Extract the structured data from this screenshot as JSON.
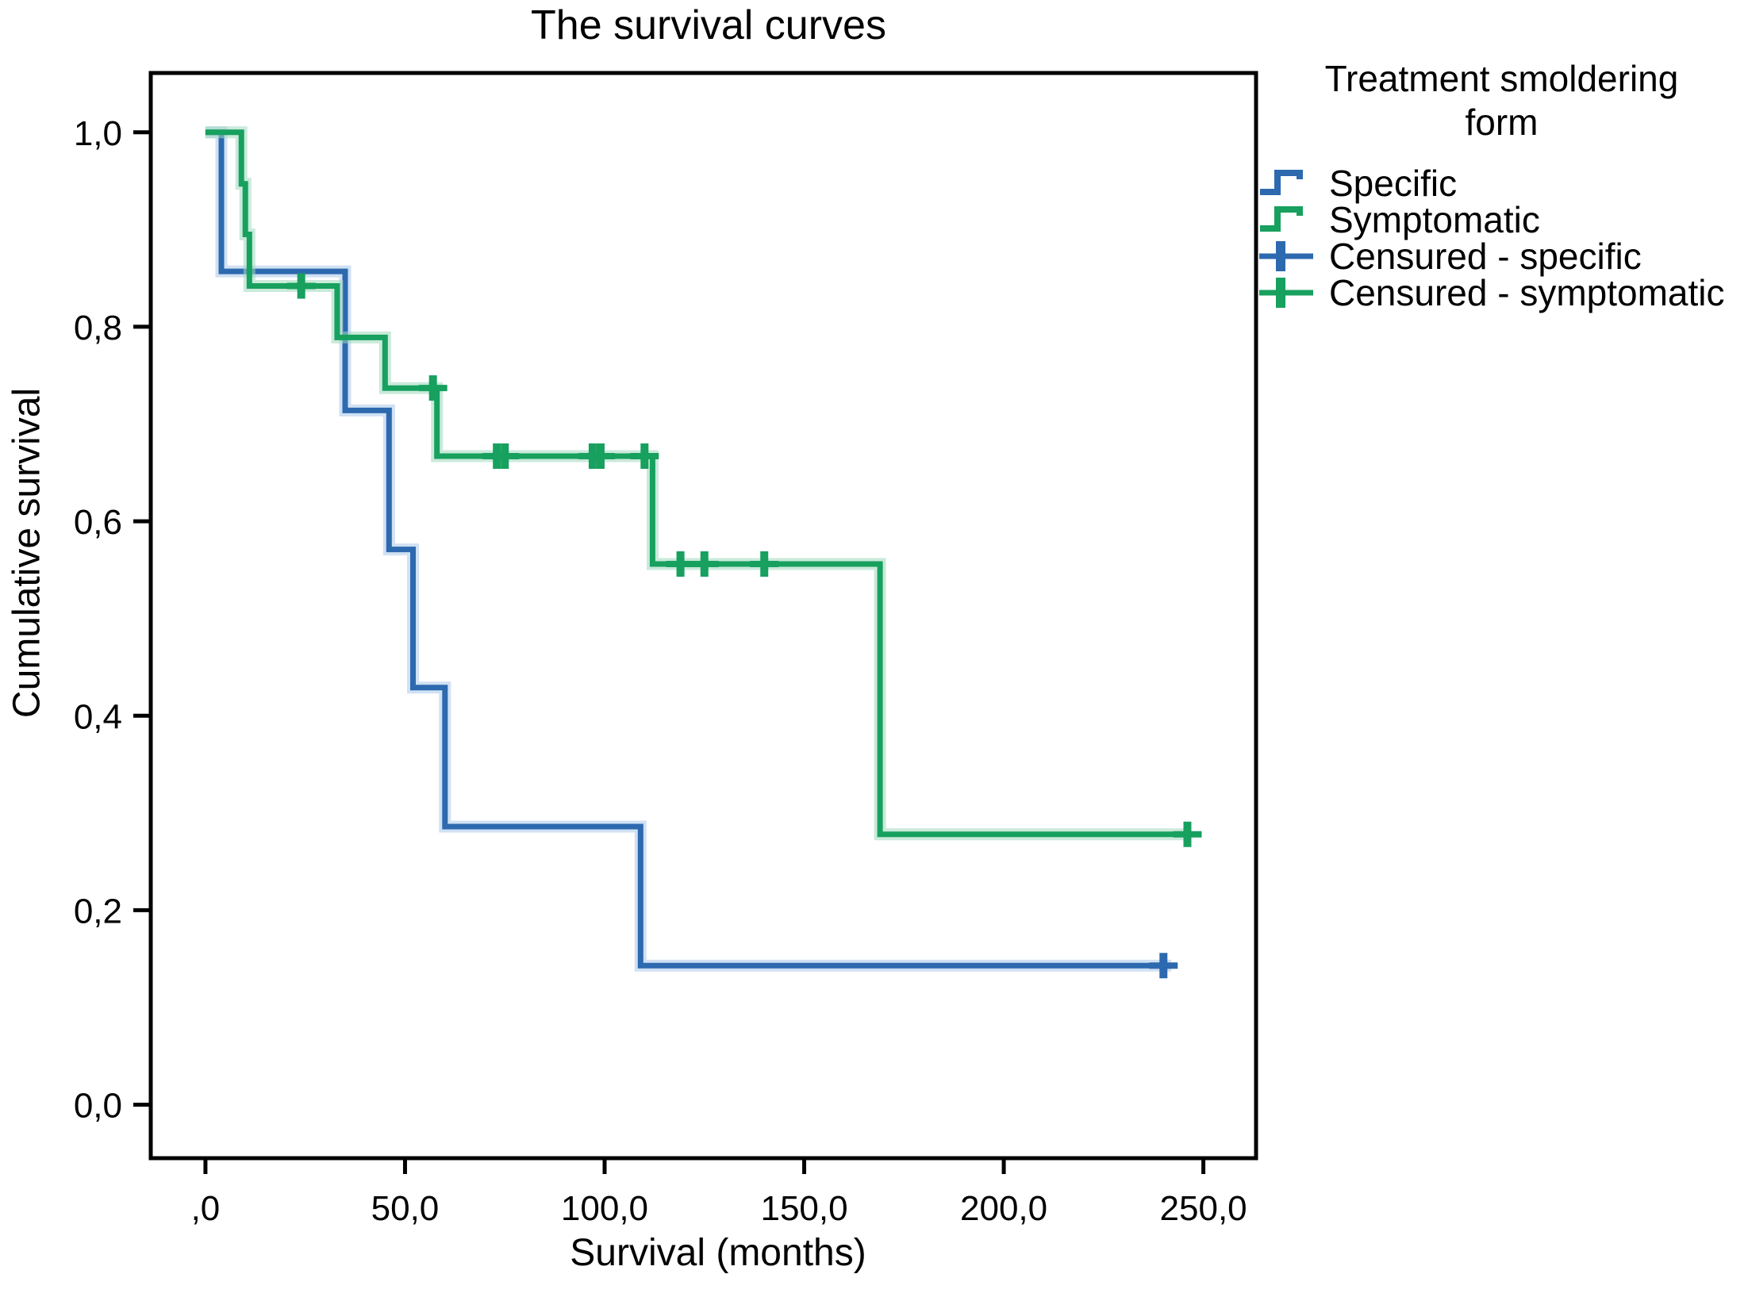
{
  "title": "The survival curves",
  "axes": {
    "xlabel": "Survival (months)",
    "ylabel": "Cumulative survival"
  },
  "legend": {
    "title": "Treatment smoldering form",
    "items": [
      {
        "label": "Specific",
        "glyph": "step",
        "color": "#2D69AF"
      },
      {
        "label": "Symptomatic",
        "glyph": "step",
        "color": "#17A05E"
      },
      {
        "label": "Censured - specific",
        "glyph": "censor",
        "color": "#2D69AF"
      },
      {
        "label": "Censured - symptomatic",
        "glyph": "censor",
        "color": "#17A05E"
      }
    ]
  },
  "chart_data": {
    "type": "line",
    "subtype": "kaplan-meier-step",
    "title": "The survival curves",
    "xlabel": "Survival (months)",
    "ylabel": "Cumulative survival",
    "grid": false,
    "legend_position": "outside-top-right",
    "xlim": [
      -13.7,
      263.2
    ],
    "ylim": [
      -0.055,
      1.061
    ],
    "x_ticks": [
      {
        "value": 0,
        "label": ",0"
      },
      {
        "value": 50,
        "label": "50,0"
      },
      {
        "value": 100,
        "label": "100,0"
      },
      {
        "value": 150,
        "label": "150,0"
      },
      {
        "value": 200,
        "label": "200,0"
      },
      {
        "value": 250,
        "label": "250,0"
      }
    ],
    "y_ticks": [
      {
        "value": 1.0,
        "label": "1,0"
      },
      {
        "value": 0.8,
        "label": "0,8"
      },
      {
        "value": 0.6,
        "label": "0,6"
      },
      {
        "value": 0.4,
        "label": "0,4"
      },
      {
        "value": 0.2,
        "label": "0,2"
      },
      {
        "value": 0.0,
        "label": "0,0"
      }
    ],
    "series": [
      {
        "name": "Specific",
        "color": "#2D69AF",
        "halo": "#A9C9E9",
        "steps": [
          [
            0,
            1.0
          ],
          [
            4,
            0.857
          ],
          [
            35,
            0.714
          ],
          [
            46,
            0.571
          ],
          [
            52,
            0.429
          ],
          [
            60,
            0.286
          ],
          [
            109,
            0.143
          ]
        ],
        "line_end": 242,
        "censored": [
          [
            240,
            0.143
          ]
        ]
      },
      {
        "name": "Symptomatic",
        "color": "#17A05E",
        "halo": "#9FD8BD",
        "steps": [
          [
            0,
            1.0
          ],
          [
            9,
            0.947
          ],
          [
            10,
            0.895
          ],
          [
            11,
            0.842
          ],
          [
            33,
            0.789
          ],
          [
            45,
            0.737
          ],
          [
            58,
            0.667
          ],
          [
            112,
            0.556
          ],
          [
            169,
            0.278
          ]
        ],
        "line_end": 247,
        "censored": [
          [
            24,
            0.842
          ],
          [
            57,
            0.737
          ],
          [
            73,
            0.667
          ],
          [
            75,
            0.667
          ],
          [
            97,
            0.667
          ],
          [
            99,
            0.667
          ],
          [
            110,
            0.667
          ],
          [
            119,
            0.556
          ],
          [
            125,
            0.556
          ],
          [
            140,
            0.556
          ],
          [
            246,
            0.278
          ]
        ]
      }
    ]
  }
}
